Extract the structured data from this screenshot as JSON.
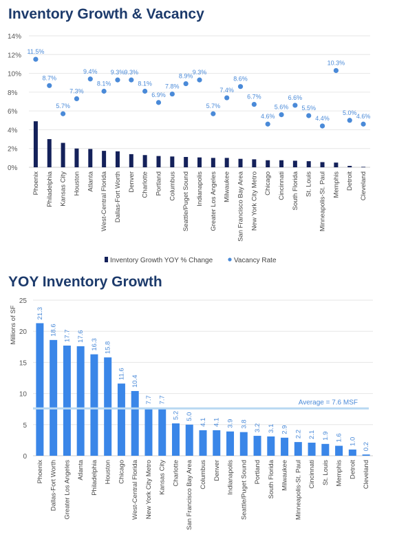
{
  "chart_data": [
    {
      "type": "bar",
      "title": "Inventory Growth & Vacancy",
      "categories": [
        "Phoenix",
        "Philadelphia",
        "Kansas City",
        "Houston",
        "Atlanta",
        "West-Central Florida",
        "Dallas-Fort Worth",
        "Denver",
        "Charlotte",
        "Portland",
        "Columbus",
        "Seattle/Puget Sound",
        "Indianapolis",
        "Greater Los Angeles",
        "Milwaukee",
        "San Francisco Bay Area",
        "New York City Metro",
        "Chicago",
        "Cincinnati",
        "South Florida",
        "St. Louis",
        "Minneapolis-St. Paul",
        "Memphis",
        "Detroit",
        "Cleveland"
      ],
      "series": [
        {
          "name": "Inventory Growth YOY % Change",
          "kind": "bar",
          "color": "#14215a",
          "values": [
            4.9,
            3.0,
            2.6,
            2.0,
            1.95,
            1.75,
            1.7,
            1.4,
            1.3,
            1.2,
            1.15,
            1.1,
            1.05,
            1.0,
            1.0,
            0.9,
            0.85,
            0.75,
            0.75,
            0.7,
            0.65,
            0.55,
            0.5,
            0.15,
            0.05
          ]
        },
        {
          "name": "Vacancy Rate",
          "kind": "scatter",
          "color": "#4a8ad8",
          "values": [
            11.5,
            8.7,
            5.7,
            7.3,
            9.4,
            8.1,
            9.3,
            9.3,
            8.1,
            6.9,
            7.8,
            8.9,
            9.3,
            5.7,
            7.4,
            8.6,
            6.7,
            4.6,
            5.6,
            6.6,
            5.5,
            4.4,
            10.3,
            5.0,
            4.6
          ],
          "labels": [
            "11.5%",
            "8.7%",
            "5.7%",
            "7.3%",
            "9.4%",
            "8.1%",
            "9.3%",
            "9.3%",
            "8.1%",
            "6.9%",
            "7.8%",
            "8.9%",
            "9.3%",
            "5.7%",
            "7.4%",
            "8.6%",
            "6.7%",
            "4.6%",
            "5.6%",
            "6.6%",
            "5.5%",
            "4.4%",
            "10.3%",
            "5.0%",
            "4.6%"
          ]
        }
      ],
      "ylim": [
        0,
        14
      ],
      "yticks": [
        "0%",
        "2%",
        "4%",
        "6%",
        "8%",
        "10%",
        "12%",
        "14%"
      ],
      "grid": true,
      "legend": "bottom"
    },
    {
      "type": "bar",
      "title": "YOY Inventory Growth",
      "ylabel": "Millions of SF",
      "categories": [
        "Phoenix",
        "Dallas-Fort Worth",
        "Greater Los Angeles",
        "Atlanta",
        "Philadelphia",
        "Houston",
        "Chicago",
        "West-Central Florida",
        "New York City Metro",
        "Kansas City",
        "Charlotte",
        "San Francisco Bay Area",
        "Columbus",
        "Denver",
        "Indianapolis",
        "Seattle/Puget Sound",
        "Portland",
        "South Florida",
        "Milwaukee",
        "Minneapolis-St. Paul",
        "Cincinnati",
        "St. Louis",
        "Memphis",
        "Detroit",
        "Cleveland"
      ],
      "values": [
        21.3,
        18.6,
        17.7,
        17.6,
        16.3,
        15.8,
        11.6,
        10.4,
        7.7,
        7.7,
        5.2,
        5.0,
        4.1,
        4.1,
        3.9,
        3.8,
        3.2,
        3.1,
        2.9,
        2.2,
        2.1,
        1.9,
        1.6,
        1.0,
        0.2
      ],
      "labels": [
        "21.3",
        "18.6",
        "17.7",
        "17.6",
        "16.3",
        "15.8",
        "11.6",
        "10.4",
        "7.7",
        "7.7",
        "5.2",
        "5.0",
        "4.1",
        "4.1",
        "3.9",
        "3.8",
        "3.2",
        "3.1",
        "2.9",
        "2.2",
        "2.1",
        "1.9",
        "1.6",
        "1.0",
        "0.2"
      ],
      "bar_color": "#3a86e8",
      "ylim": [
        0,
        25
      ],
      "yticks": [
        "0",
        "5",
        "10",
        "15",
        "20",
        "25"
      ],
      "average": {
        "value": 7.6,
        "label": "Average = 7.6 MSF",
        "color": "#b8d8f2"
      },
      "grid": true
    }
  ]
}
